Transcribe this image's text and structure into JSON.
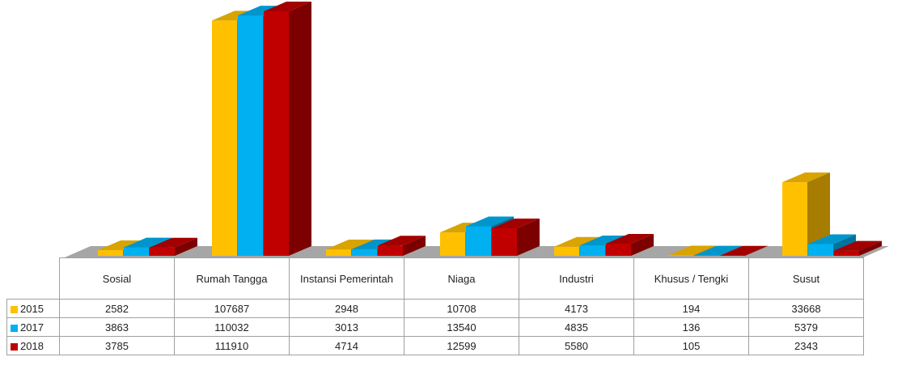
{
  "chart_data": {
    "type": "bar",
    "categories": [
      "Sosial",
      "Rumah Tangga",
      "Instansi Pemerintah",
      "Niaga",
      "Industri",
      "Khusus / Tengki",
      "Susut"
    ],
    "series": [
      {
        "name": "2015",
        "color": "#ffc000",
        "values": [
          2582,
          107687,
          2948,
          10708,
          4173,
          194,
          33668
        ]
      },
      {
        "name": "2017",
        "color": "#00b0f0",
        "values": [
          3863,
          110032,
          3013,
          13540,
          4835,
          136,
          5379
        ]
      },
      {
        "name": "2018",
        "color": "#c00000",
        "values": [
          3785,
          111910,
          4714,
          12599,
          5580,
          105,
          2343
        ]
      }
    ]
  }
}
